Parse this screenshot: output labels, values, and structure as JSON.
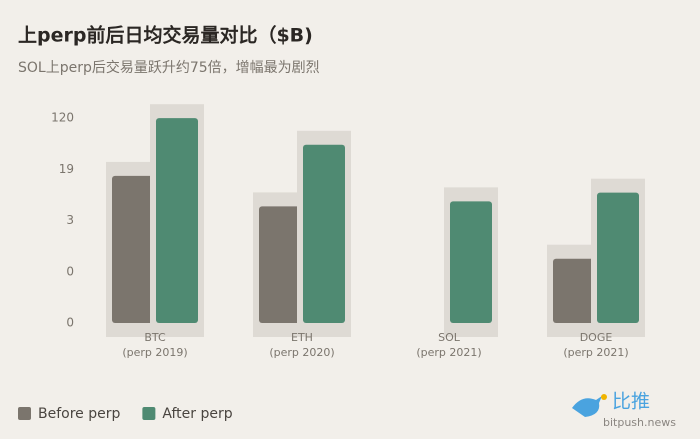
{
  "chart_data": {
    "type": "bar",
    "title": "上perp前后日均交易量对比（$B)",
    "subtitle": "SOL上perp后交易量跃升约75倍，增幅最为剧烈",
    "categories": [
      {
        "name": "BTC",
        "note": "(perp 2019)"
      },
      {
        "name": "ETH",
        "note": "(perp 2020)"
      },
      {
        "name": "SOL",
        "note": "(perp 2021)"
      },
      {
        "name": "DOGE",
        "note": "(perp 2021)"
      }
    ],
    "series": [
      {
        "name": "Before perp",
        "color": "#7b756d",
        "values": [
          15,
          5,
          null,
          0.76
        ]
      },
      {
        "name": "After perp",
        "color": "#4f8a72",
        "values": [
          120,
          46,
          6,
          8.2
        ]
      }
    ],
    "log_scale": true,
    "ylim": [
      0.075,
      200
    ],
    "yticks": [
      {
        "value": 0.075,
        "label": "0"
      },
      {
        "value": 0.47,
        "label": "0"
      },
      3,
      19,
      120
    ],
    "grid": false,
    "legend": "bottom-left",
    "watermark": {
      "name": "比推",
      "site": "bitpush.news"
    }
  }
}
